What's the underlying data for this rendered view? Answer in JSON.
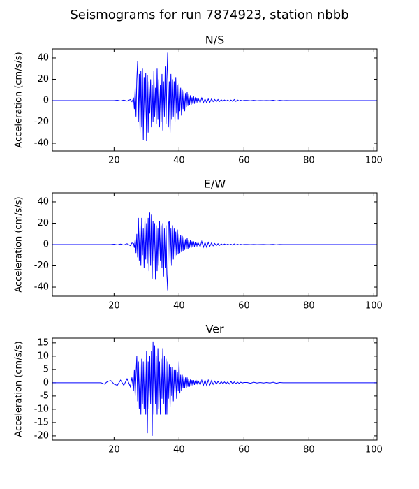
{
  "title": "Seismograms for run 7874923, station nbbb",
  "chart_data": [
    {
      "type": "line",
      "title": "N/S",
      "ylabel": "Acceleration (cm/s/s)",
      "color": "#0000ff",
      "xlim": [
        1,
        101
      ],
      "xticks": [
        20,
        40,
        60,
        80,
        100
      ],
      "ylim": [
        -47.2,
        48.5
      ],
      "yticks": [
        -40,
        -20,
        0,
        20,
        40
      ],
      "x": [
        1,
        10,
        15,
        16,
        17,
        18,
        19,
        20,
        21,
        22,
        23,
        24,
        25,
        25.5,
        26,
        26.25,
        26.5,
        26.75,
        27,
        27.25,
        27.5,
        27.75,
        28,
        28.25,
        28.5,
        28.75,
        29,
        29.25,
        29.5,
        29.75,
        30,
        30.25,
        30.5,
        30.75,
        31,
        31.25,
        31.5,
        31.75,
        32,
        32.25,
        32.5,
        32.75,
        33,
        33.25,
        33.5,
        33.75,
        34,
        34.25,
        34.5,
        34.75,
        35,
        35.25,
        35.5,
        35.75,
        36,
        36.25,
        36.5,
        36.75,
        37,
        37.25,
        37.5,
        37.75,
        38,
        38.25,
        38.5,
        38.75,
        39,
        39.25,
        39.5,
        39.75,
        40,
        40.25,
        40.5,
        40.75,
        41,
        41.25,
        41.5,
        41.75,
        42,
        42.25,
        42.5,
        42.75,
        43,
        43.25,
        43.5,
        43.75,
        44,
        44.25,
        44.5,
        44.75,
        45,
        45.25,
        45.5,
        45.75,
        46,
        46.5,
        47,
        47.5,
        48,
        48.5,
        49,
        49.5,
        50,
        50.5,
        51,
        51.5,
        52,
        52.5,
        53,
        53.5,
        54,
        54.5,
        55,
        55.5,
        56,
        56.5,
        57,
        57.5,
        58,
        58.5,
        59,
        59.5,
        60,
        61,
        62,
        63,
        64,
        65,
        66,
        67,
        68,
        69,
        70,
        71,
        72,
        73,
        74,
        75,
        80,
        90,
        101
      ],
      "values": [
        0,
        0,
        0,
        0,
        0,
        0,
        0,
        0,
        0.3,
        -0.3,
        0.5,
        -0.5,
        1,
        -1,
        2,
        -8,
        12,
        -15,
        20,
        37,
        -20,
        25,
        -30,
        28,
        -25,
        30,
        -37,
        22,
        -18,
        26,
        -38,
        24,
        -30,
        18,
        -12,
        20,
        -25,
        15,
        -20,
        28,
        -15,
        12,
        -22,
        30,
        -18,
        20,
        -25,
        15,
        -20,
        25,
        -28,
        18,
        -15,
        32,
        -22,
        20,
        45,
        -25,
        18,
        -30,
        25,
        -18,
        20,
        -15,
        18,
        -20,
        22,
        -12,
        15,
        -18,
        16,
        -10,
        12,
        -14,
        10,
        -8,
        9,
        -10,
        7,
        -6,
        8,
        -5,
        6,
        -4,
        5,
        -4,
        3,
        -3,
        4,
        -3,
        3,
        -2,
        2,
        -2,
        1.5,
        -2,
        2.5,
        -2,
        1.5,
        -2,
        1.5,
        -1.5,
        1.5,
        -1,
        1,
        -1,
        1,
        -0.8,
        0.8,
        -0.6,
        0.6,
        -0.5,
        0.5,
        -0.5,
        0.5,
        -0.8,
        1,
        -0.8,
        0.6,
        -0.4,
        0.3,
        -0.3,
        0.2,
        0.2,
        -0.2,
        0.2,
        -0.2,
        0.1,
        -0.1,
        0.1,
        -0.1,
        0.3,
        -0.3,
        0.2,
        -0.1,
        0.1,
        0,
        0,
        0,
        0,
        0
      ]
    },
    {
      "type": "line",
      "title": "E/W",
      "ylabel": "Acceleration (cm/s/s)",
      "color": "#0000ff",
      "xlim": [
        1,
        101
      ],
      "xticks": [
        20,
        40,
        60,
        80,
        100
      ],
      "ylim": [
        -48.5,
        48.5
      ],
      "yticks": [
        -40,
        -20,
        0,
        20,
        40
      ],
      "x": [
        1,
        10,
        15,
        16,
        17,
        18,
        19,
        20,
        21,
        22,
        23,
        24,
        25,
        25.5,
        26,
        26.25,
        26.5,
        26.75,
        27,
        27.25,
        27.5,
        27.75,
        28,
        28.25,
        28.5,
        28.75,
        29,
        29.25,
        29.5,
        29.75,
        30,
        30.25,
        30.5,
        30.75,
        31,
        31.25,
        31.5,
        31.75,
        32,
        32.25,
        32.5,
        32.75,
        33,
        33.25,
        33.5,
        33.75,
        34,
        34.25,
        34.5,
        34.75,
        35,
        35.25,
        35.5,
        35.75,
        36,
        36.25,
        36.5,
        36.75,
        37,
        37.25,
        37.5,
        37.75,
        38,
        38.25,
        38.5,
        38.75,
        39,
        39.25,
        39.5,
        39.75,
        40,
        40.25,
        40.5,
        40.75,
        41,
        41.25,
        41.5,
        41.75,
        42,
        42.25,
        42.5,
        42.75,
        43,
        43.25,
        43.5,
        43.75,
        44,
        44.25,
        44.5,
        44.75,
        45,
        45.25,
        45.5,
        45.75,
        46,
        46.5,
        47,
        47.5,
        48,
        48.5,
        49,
        49.5,
        50,
        50.5,
        51,
        51.5,
        52,
        52.5,
        53,
        53.5,
        54,
        54.5,
        55,
        55.5,
        56,
        56.5,
        57,
        57.5,
        58,
        58.5,
        59,
        59.5,
        60,
        61,
        62,
        63,
        64,
        65,
        66,
        67,
        68,
        69,
        70,
        71,
        72,
        73,
        74,
        75,
        80,
        90,
        101
      ],
      "values": [
        0,
        0,
        0,
        0,
        0,
        0,
        0,
        0.3,
        -0.3,
        0.5,
        -0.5,
        0.8,
        -1,
        1.5,
        1,
        -3,
        5,
        -8,
        10,
        -12,
        25,
        -15,
        18,
        -20,
        25,
        -10,
        15,
        -22,
        24,
        -14,
        20,
        -18,
        25,
        -25,
        30,
        -20,
        28,
        -32,
        22,
        -15,
        20,
        -33,
        18,
        -25,
        15,
        -20,
        22,
        -15,
        18,
        -22,
        20,
        -30,
        15,
        -22,
        18,
        -28,
        -43,
        20,
        22,
        -18,
        15,
        -20,
        18,
        -14,
        15,
        -12,
        12,
        -10,
        14,
        -9,
        10,
        -8,
        9,
        -7,
        8,
        -6,
        7,
        -5,
        5,
        -4,
        6,
        -4,
        4,
        -3,
        4,
        -3,
        3,
        -2,
        3,
        -2,
        2,
        -2,
        1.5,
        -1.5,
        1,
        -2,
        3,
        -2.5,
        2,
        -2.5,
        2,
        -1.5,
        1.5,
        -1.2,
        1,
        -1,
        0.8,
        -0.8,
        0.6,
        -0.5,
        0.5,
        -0.4,
        0.4,
        -0.3,
        0.3,
        -0.5,
        0.6,
        -0.4,
        0.3,
        -0.3,
        0.2,
        -0.2,
        0.1,
        0.1,
        -0.1,
        0.1,
        -0.1,
        0,
        0.1,
        -0.1,
        0,
        0.2,
        -0.2,
        0.1,
        0,
        0,
        0,
        0,
        0,
        0,
        0
      ]
    },
    {
      "type": "line",
      "title": "Ver",
      "ylabel": "Acceleration (cm/s/s)",
      "color": "#0000ff",
      "xlim": [
        1,
        101
      ],
      "xticks": [
        20,
        40,
        60,
        80,
        100
      ],
      "ylim": [
        -21.6,
        16.8
      ],
      "yticks": [
        -20,
        -15,
        -10,
        -5,
        0,
        5,
        10,
        15
      ],
      "x": [
        1,
        10,
        15,
        16,
        17,
        18,
        19,
        20,
        21,
        22,
        23,
        24,
        25,
        25.5,
        26,
        26.25,
        26.5,
        26.75,
        27,
        27.25,
        27.5,
        27.75,
        28,
        28.25,
        28.5,
        28.75,
        29,
        29.25,
        29.5,
        29.75,
        30,
        30.25,
        30.5,
        30.75,
        31,
        31.25,
        31.5,
        31.75,
        32,
        32.25,
        32.5,
        32.75,
        33,
        33.25,
        33.5,
        33.75,
        34,
        34.25,
        34.5,
        34.75,
        35,
        35.25,
        35.5,
        35.75,
        36,
        36.25,
        36.5,
        36.75,
        37,
        37.25,
        37.5,
        37.75,
        38,
        38.25,
        38.5,
        38.75,
        39,
        39.25,
        39.5,
        39.75,
        40,
        40.25,
        40.5,
        40.75,
        41,
        41.25,
        41.5,
        41.75,
        42,
        42.25,
        42.5,
        42.75,
        43,
        43.25,
        43.5,
        43.75,
        44,
        44.25,
        44.5,
        44.75,
        45,
        45.25,
        45.5,
        45.75,
        46,
        46.5,
        47,
        47.5,
        48,
        48.5,
        49,
        49.5,
        50,
        50.5,
        51,
        51.5,
        52,
        52.5,
        53,
        53.5,
        54,
        54.5,
        55,
        55.5,
        56,
        56.5,
        57,
        57.5,
        58,
        58.5,
        59,
        59.5,
        60,
        61,
        62,
        63,
        64,
        65,
        66,
        67,
        68,
        69,
        70,
        71,
        72,
        73,
        74,
        75,
        80,
        90,
        101
      ],
      "values": [
        0,
        0,
        0,
        0,
        -0.5,
        0.5,
        0.8,
        -0.5,
        -1,
        1,
        -1,
        1.5,
        -1.5,
        2,
        -3,
        5,
        -5,
        3,
        10,
        -7,
        8,
        -10,
        7,
        -12,
        9,
        -8,
        8,
        -10,
        9,
        -12,
        12,
        -19,
        8,
        -10,
        10,
        -8,
        12,
        -20,
        15.5,
        -12,
        14,
        -8,
        10,
        -12,
        13,
        -10,
        8,
        -12,
        9,
        -6,
        13,
        -8,
        10,
        -12,
        9,
        -12,
        8,
        -6,
        7,
        -9,
        6,
        -5,
        6,
        -7,
        5,
        -4,
        5,
        -6,
        4,
        -3,
        8,
        -4,
        3,
        -3,
        3,
        -2,
        2.5,
        -2,
        2,
        -2,
        2,
        -1.5,
        1.5,
        -1.5,
        1.2,
        -1,
        1,
        -1,
        1,
        -0.8,
        0.8,
        -0.6,
        0.6,
        -0.5,
        0.5,
        -0.8,
        1,
        -1,
        1,
        -1,
        1,
        -0.8,
        0.8,
        -0.6,
        0.6,
        -0.5,
        0.5,
        -0.4,
        0.4,
        -0.3,
        0.3,
        -0.3,
        0.3,
        -0.5,
        0.5,
        -0.4,
        0.3,
        -0.3,
        0.2,
        -0.2,
        0.2,
        -0.1,
        0.1,
        0.1,
        -0.2,
        0.2,
        -0.1,
        0.1,
        -0.1,
        0.1,
        -0.1,
        0.2,
        -0.2,
        0.1,
        0,
        0,
        0,
        0,
        0,
        0,
        0
      ]
    }
  ]
}
